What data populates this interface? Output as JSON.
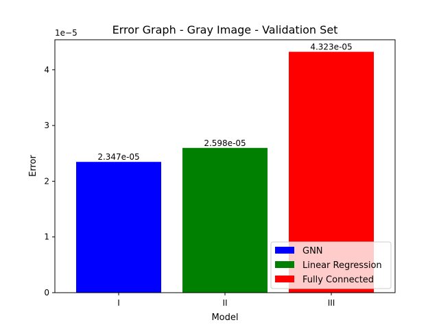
{
  "chart_data": {
    "type": "bar",
    "title": "Error Graph - Gray Image - Validation Set",
    "xlabel": "Model",
    "ylabel": "Error",
    "y_offset_label": "1e−5",
    "y_scale": 1e-05,
    "categories": [
      "I",
      "II",
      "III"
    ],
    "values": [
      2.347e-05,
      2.598e-05,
      4.323e-05
    ],
    "data_labels": [
      "2.347e-05",
      "2.598e-05",
      "4.323e-05"
    ],
    "ylim": [
      0,
      4.5387e-05
    ],
    "y_ticks": [
      0,
      1e-05,
      2e-05,
      3e-05,
      4e-05
    ],
    "y_tick_labels": [
      "0",
      "1",
      "2",
      "3",
      "4"
    ],
    "series": [
      {
        "name": "GNN",
        "color": "#0000ff"
      },
      {
        "name": "Linear Regression",
        "color": "#008000"
      },
      {
        "name": "Fully Connected",
        "color": "#ff0000"
      }
    ],
    "grid": false,
    "legend_position": "lower-right"
  }
}
